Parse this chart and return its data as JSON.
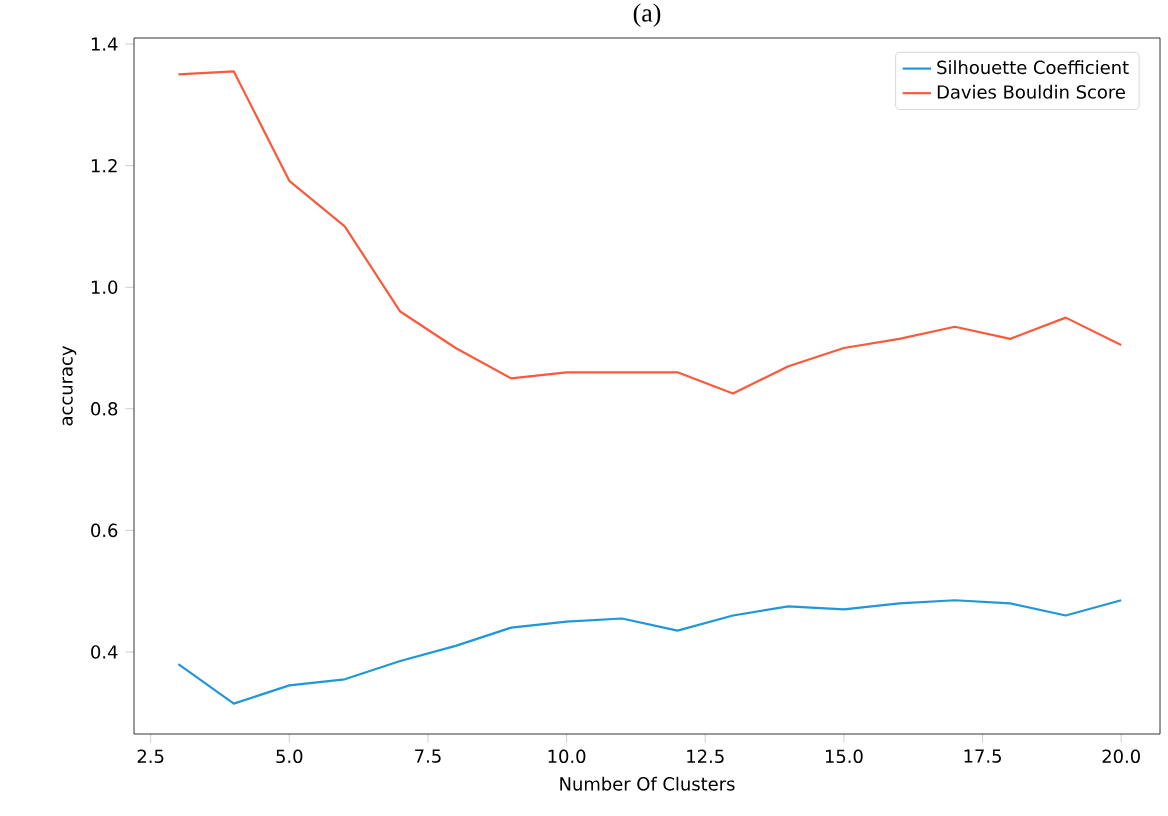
{
  "chart_data": {
    "type": "line",
    "title": "(a)",
    "xlabel": "Number Of Clusters",
    "ylabel": "accuracy",
    "x": [
      3,
      4,
      5,
      6,
      7,
      8,
      9,
      10,
      11,
      12,
      13,
      14,
      15,
      16,
      17,
      18,
      19,
      20
    ],
    "series": [
      {
        "name": "Silhouette Coefficient",
        "color": "#1f97d9",
        "values": [
          0.38,
          0.315,
          0.345,
          0.355,
          0.385,
          0.41,
          0.44,
          0.45,
          0.455,
          0.435,
          0.46,
          0.475,
          0.47,
          0.48,
          0.485,
          0.48,
          0.46,
          0.485
        ]
      },
      {
        "name": "Davies Bouldin Score",
        "color": "#f95a3c",
        "values": [
          1.35,
          1.355,
          1.175,
          1.1,
          0.96,
          0.9,
          0.85,
          0.86,
          0.86,
          0.86,
          0.825,
          0.87,
          0.9,
          0.915,
          0.935,
          0.915,
          0.95,
          0.905
        ]
      }
    ],
    "xlim": [
      2.2,
      20.7
    ],
    "ylim": [
      0.265,
      1.41
    ],
    "xticks": [
      {
        "value": 2.5,
        "label": "2.5"
      },
      {
        "value": 5,
        "label": "5.0"
      },
      {
        "value": 7.5,
        "label": "7.5"
      },
      {
        "value": 10,
        "label": "10.0"
      },
      {
        "value": 12.5,
        "label": "12.5"
      },
      {
        "value": 15,
        "label": "15.0"
      },
      {
        "value": 17.5,
        "label": "17.5"
      },
      {
        "value": 20,
        "label": "20.0"
      }
    ],
    "yticks": [
      {
        "value": 0.4,
        "label": "0.4"
      },
      {
        "value": 0.6,
        "label": "0.6"
      },
      {
        "value": 0.8,
        "label": "0.8"
      },
      {
        "value": 1.0,
        "label": "1.0"
      },
      {
        "value": 1.2,
        "label": "1.2"
      },
      {
        "value": 1.4,
        "label": "1.4"
      }
    ],
    "legend": "top right",
    "grid": false,
    "marker": "none",
    "line_style": "solid"
  }
}
